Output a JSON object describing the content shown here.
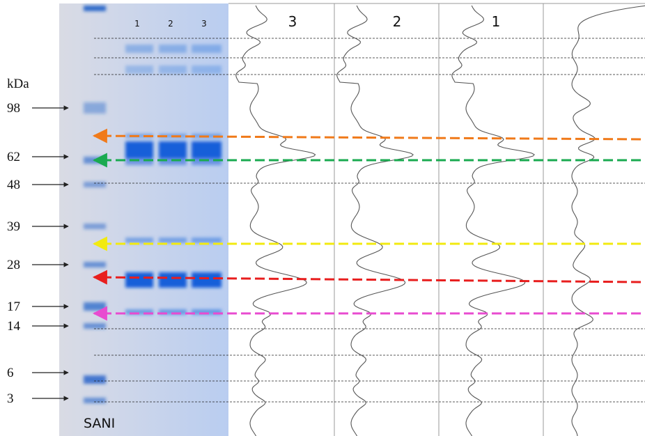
{
  "units": "kDa",
  "markers": [
    "98",
    "62",
    "48",
    "39",
    "28",
    "17",
    "14",
    "6",
    "3"
  ],
  "lanes": [
    "1",
    "2",
    "3"
  ],
  "profiles": [
    "3",
    "2",
    "1"
  ],
  "sample": "SANI"
}
